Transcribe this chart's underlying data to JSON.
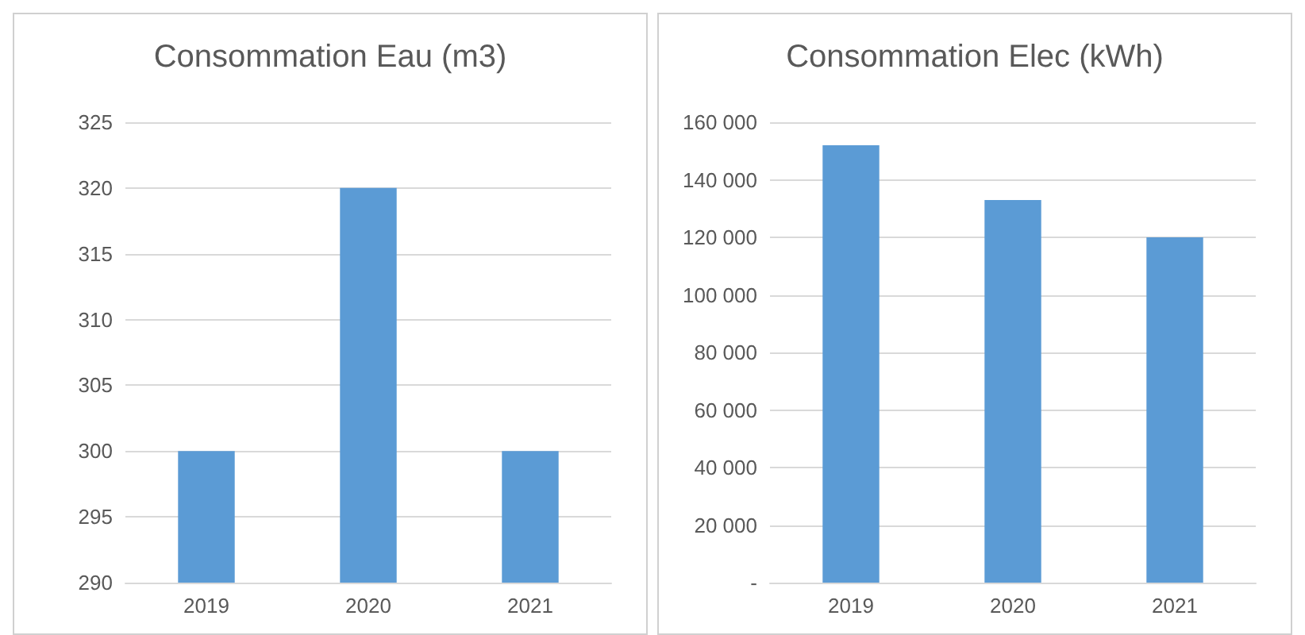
{
  "chart_data": [
    {
      "type": "bar",
      "title": "Consommation Eau (m3)",
      "categories": [
        "2019",
        "2020",
        "2021"
      ],
      "values": [
        300,
        320,
        300
      ],
      "color": "#5b9bd5",
      "ylim": [
        290,
        325
      ],
      "yticks": [
        290,
        295,
        300,
        305,
        310,
        315,
        320,
        325
      ],
      "grid": "y"
    },
    {
      "type": "bar",
      "title": "Consommation Elec (kWh)",
      "categories": [
        "2019",
        "2020",
        "2021"
      ],
      "values": [
        152000,
        133000,
        120000
      ],
      "color": "#5b9bd5",
      "ylim": [
        0,
        160000
      ],
      "yticks": [
        {
          "value": 0,
          "label": "-"
        },
        {
          "value": 20000,
          "label": "20 000"
        },
        {
          "value": 40000,
          "label": "40 000"
        },
        {
          "value": 60000,
          "label": "60 000"
        },
        {
          "value": 80000,
          "label": "80 000"
        },
        {
          "value": 100000,
          "label": "100 000"
        },
        {
          "value": 120000,
          "label": "120 000"
        },
        {
          "value": 140000,
          "label": "140 000"
        },
        {
          "value": 160000,
          "label": "160 000"
        }
      ],
      "grid": "y"
    }
  ]
}
